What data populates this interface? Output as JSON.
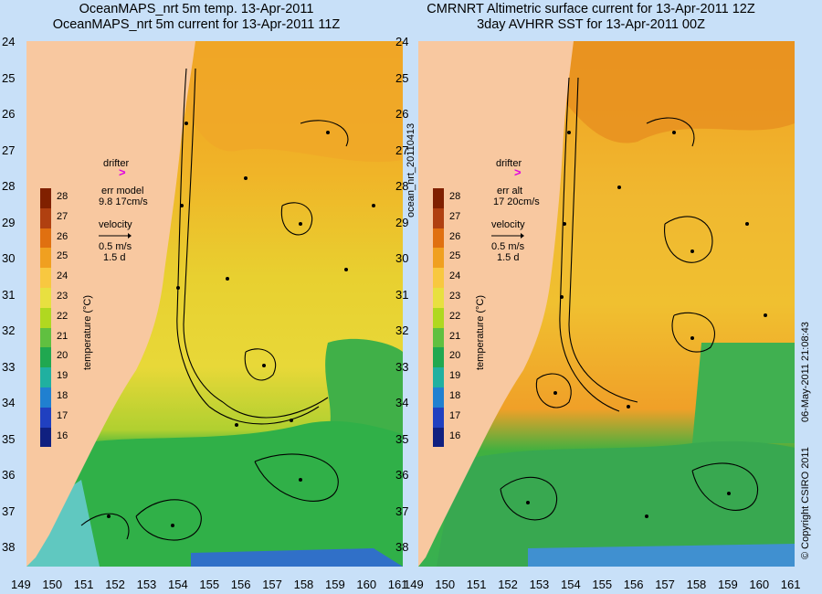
{
  "left": {
    "title1": "OceanMAPS_nrt 5m temp. 13-Apr-2011",
    "title2": "OceanMAPS_nrt 5m current for 13-Apr-2011 11Z",
    "err_label": "err model",
    "err_value": "9.8 17cm/s"
  },
  "right": {
    "title1": "CMRNRT Altimetric surface current for 13-Apr-2011 12Z",
    "title2": "3day AVHRR SST for 13-Apr-2011 00Z",
    "err_label": "err alt",
    "err_value": "17 20cm/s"
  },
  "legend": {
    "drifter": "drifter",
    "drifter_symbol": ">",
    "velocity": "velocity",
    "speed": "0.5 m/s",
    "duration": "1.5 d",
    "temperature_label": "temperature (°C)",
    "temperature_ticks": [
      "28",
      "27",
      "26",
      "25",
      "24",
      "23",
      "22",
      "21",
      "20",
      "19",
      "18",
      "17",
      "16"
    ]
  },
  "axes": {
    "lat_ticks": [
      "24",
      "25",
      "26",
      "27",
      "28",
      "29",
      "30",
      "31",
      "32",
      "33",
      "34",
      "35",
      "36",
      "37",
      "38"
    ],
    "lon_ticks_left": [
      "149",
      "150",
      "151",
      "152",
      "153",
      "154",
      "155",
      "156",
      "157",
      "158",
      "159",
      "160",
      "161"
    ],
    "lon_ticks_right": [
      "149",
      "150",
      "151",
      "152",
      "153",
      "154",
      "155",
      "156",
      "157",
      "158",
      "159",
      "160",
      "161"
    ]
  },
  "side": {
    "run_id": "ocean_nrt_20110413",
    "copyright": "© Copyright CSIRO 2011",
    "timestamp": "06-May-2011 21:08:43"
  },
  "colors": {
    "land": "#f8c8a0",
    "warm": "#f0a020",
    "mid": "#e8d030",
    "cool": "#30b040",
    "cold": "#60c8c0",
    "drifter": "#e000e0"
  },
  "colorbar_colors": [
    "#802000",
    "#b04010",
    "#e07010",
    "#f0a020",
    "#f8c840",
    "#e8e040",
    "#b0d820",
    "#60c040",
    "#20a850",
    "#20b0a0",
    "#2080d0",
    "#2040c0",
    "#102080"
  ]
}
